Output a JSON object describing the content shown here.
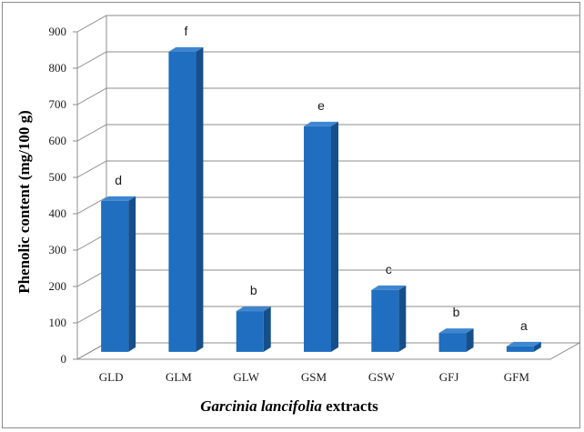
{
  "chart_data": {
    "type": "bar",
    "categories": [
      "GLD",
      "GLM",
      "GLW",
      "GSM",
      "GSW",
      "GFJ",
      "GFM"
    ],
    "values": [
      415,
      825,
      112,
      620,
      170,
      52,
      15
    ],
    "significance_letters": [
      "d",
      "f",
      "b",
      "e",
      "c",
      "b",
      "a"
    ],
    "ylabel": "Phenolic content (mg/100 g)",
    "xlabel_italic": "Garcinia lancifolia",
    "xlabel_rest": " extracts",
    "ylim": [
      0,
      900
    ],
    "yticks": [
      0,
      100,
      200,
      300,
      400,
      500,
      600,
      700,
      800,
      900
    ],
    "grid": true,
    "style": "3d-perspective",
    "bar_color": "#1f6ebf"
  }
}
